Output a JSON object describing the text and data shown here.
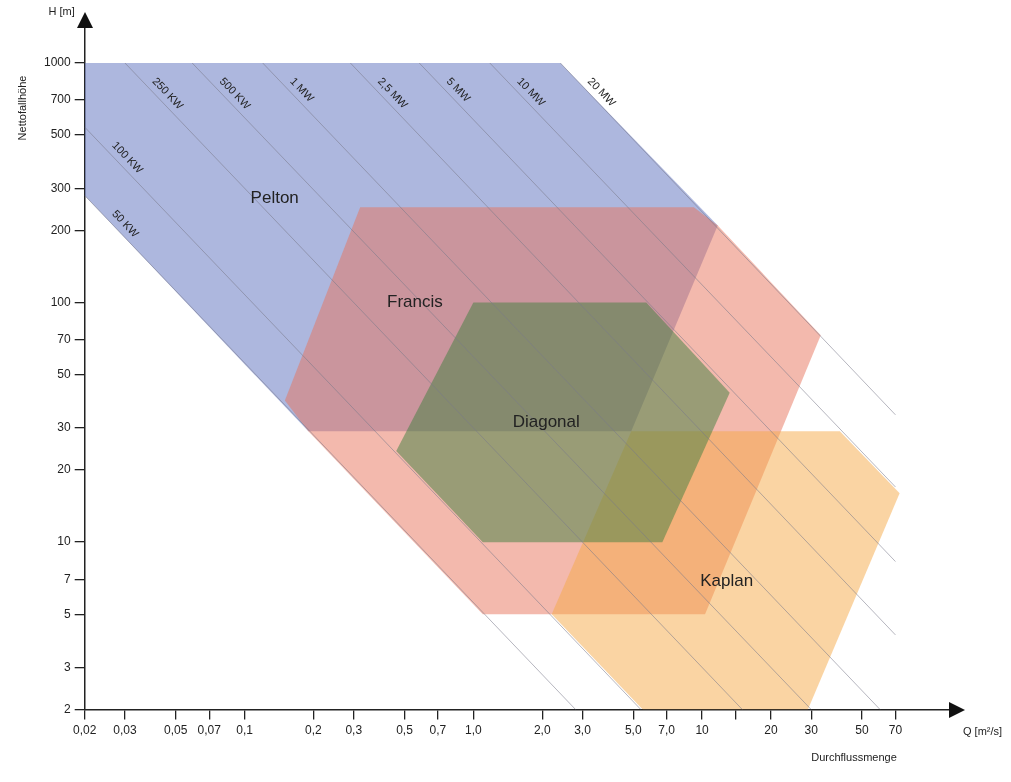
{
  "chart_data": {
    "type": "area",
    "xlabel": "Q [m²/s]",
    "ylabel": "H [m]",
    "annotations": [
      "Nettofallhöhe",
      "Durchflussmenge"
    ],
    "log": "xy",
    "grid": false,
    "legend": false,
    "xlim": [
      0.02,
      120
    ],
    "ylim": [
      2,
      1400
    ],
    "xticks": [
      {
        "value": 0.02,
        "label": "0,02"
      },
      {
        "value": 0.03,
        "label": "0,03"
      },
      {
        "value": 0.05,
        "label": "0,05"
      },
      {
        "value": 0.07,
        "label": "0,07"
      },
      {
        "value": 0.1,
        "label": "0,1"
      },
      {
        "value": 0.2,
        "label": "0,2"
      },
      {
        "value": 0.3,
        "label": "0,3"
      },
      {
        "value": 0.5,
        "label": "0,5"
      },
      {
        "value": 0.7,
        "label": "0,7"
      },
      {
        "value": 1,
        "label": "1,0"
      },
      {
        "value": 2,
        "label": "2,0"
      },
      {
        "value": 3,
        "label": "3,0"
      },
      {
        "value": 5,
        "label": "5,0"
      },
      {
        "value": 7,
        "label": "7,0"
      },
      {
        "value": 10,
        "label": "10"
      },
      {
        "value": 14,
        "label": null
      },
      {
        "value": 20,
        "label": "20"
      },
      {
        "value": 30,
        "label": "30"
      },
      {
        "value": 50,
        "label": "50"
      },
      {
        "value": 70,
        "label": "70"
      }
    ],
    "yticks": [
      2,
      3,
      5,
      7,
      10,
      20,
      30,
      50,
      70,
      100,
      200,
      300,
      500,
      700,
      1000
    ],
    "series": [
      {
        "name": "Pelton",
        "color": "#5b6fbd",
        "x": [
          0.02,
          2.4,
          11.7,
          4.9,
          0.19,
          0.02
        ],
        "values": [
          1000,
          1000,
          210,
          29,
          29,
          280
        ]
      },
      {
        "name": "Francis",
        "color": "#e8735c",
        "x": [
          0.32,
          9.2,
          11.7,
          33,
          10.3,
          1.1,
          0.19,
          0.15
        ],
        "values": [
          250,
          250,
          210,
          73,
          5,
          5,
          29,
          39
        ]
      },
      {
        "name": "Kaplan",
        "color": "#f5aa48",
        "x": [
          4.9,
          40,
          73,
          29,
          5.5,
          2.2
        ],
        "values": [
          29,
          29,
          16,
          2,
          2,
          5
        ]
      },
      {
        "name": "Diagonal",
        "color": "#3f7f3f",
        "x": [
          1,
          5.7,
          13.2,
          6.7,
          1.1,
          0.46
        ],
        "values": [
          100,
          100,
          42,
          10,
          10,
          24
        ]
      },
      {
        "type": "line",
        "name": "50 KW",
        "color": "#7a7a8a",
        "x": [
          0.02,
          2.8
        ],
        "values": [
          280,
          2
        ]
      },
      {
        "type": "line",
        "name": "100 KW",
        "color": "#7a7a8a",
        "x": [
          0.02,
          5.4
        ],
        "values": [
          540,
          2
        ]
      },
      {
        "type": "line",
        "name": "250 KW",
        "color": "#7a7a8a",
        "x": [
          0.03,
          15
        ],
        "values": [
          1000,
          2
        ]
      },
      {
        "type": "line",
        "name": "500 KW",
        "color": "#7a7a8a",
        "x": [
          0.059,
          30
        ],
        "values": [
          1000,
          2
        ]
      },
      {
        "type": "line",
        "name": "1 MW",
        "color": "#7a7a8a",
        "x": [
          0.12,
          60
        ],
        "values": [
          1000,
          2
        ]
      },
      {
        "type": "line",
        "name": "2,5 MW",
        "color": "#7a7a8a",
        "x": [
          0.29,
          70
        ],
        "values": [
          1000,
          4.1
        ]
      },
      {
        "type": "line",
        "name": "5 MW",
        "color": "#7a7a8a",
        "x": [
          0.58,
          70
        ],
        "values": [
          1000,
          8.3
        ]
      },
      {
        "type": "line",
        "name": "10 MW",
        "color": "#7a7a8a",
        "x": [
          1.18,
          70
        ],
        "values": [
          1000,
          17
        ]
      },
      {
        "type": "line",
        "name": "20 MW",
        "color": "#7a7a8a",
        "x": [
          2.4,
          70
        ],
        "values": [
          1000,
          34
        ]
      }
    ]
  }
}
